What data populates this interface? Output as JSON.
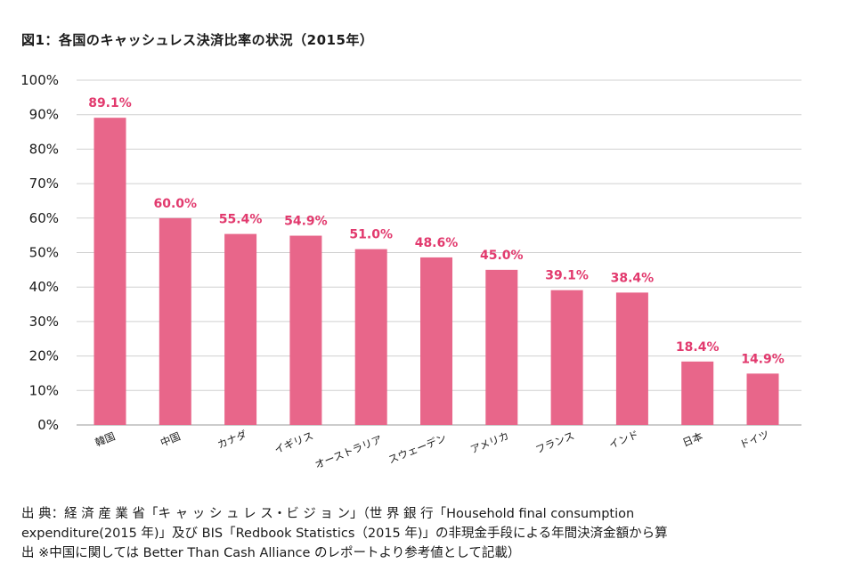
{
  "title": "図1：各国のキャッシュレス決済比率の状況（2015年）",
  "chart_data": {
    "type": "bar",
    "title": "図1：各国のキャッシュレス決済比率の状況（2015年）",
    "categories": [
      "韓国",
      "中国",
      "カナダ",
      "イギリス",
      "オーストラリア",
      "スウェーデン",
      "アメリカ",
      "フランス",
      "インド",
      "日本",
      "ドイツ"
    ],
    "values": [
      89.1,
      60.0,
      55.4,
      54.9,
      51.0,
      48.6,
      45.0,
      39.1,
      38.4,
      18.4,
      14.9
    ],
    "value_labels": [
      "89.1%",
      "60.0%",
      "55.4%",
      "54.9%",
      "51.0%",
      "48.6%",
      "45.0%",
      "39.1%",
      "38.4%",
      "18.4%",
      "14.9%"
    ],
    "ylim": [
      0,
      100
    ],
    "yticks": [
      "0%",
      "10%",
      "20%",
      "30%",
      "40%",
      "50%",
      "60%",
      "70%",
      "80%",
      "90%",
      "100%"
    ],
    "grid": true,
    "bar_color": "#e8668a",
    "label_color": "#e23a6e"
  },
  "source": {
    "line1": "出 典：経 済 産 業 省「キ ャ ッ シ ュ レ ス・ビ ジ ョ ン」（世 界 銀 行「Household final consumption",
    "line2": "expenditure(2015 年)」及び BIS「Redbook Statistics（2015 年)」の非現金手段による年間決済金額から算",
    "line3": "出 ※中国に関しては Better Than Cash Alliance のレポートより参考値として記載）"
  }
}
